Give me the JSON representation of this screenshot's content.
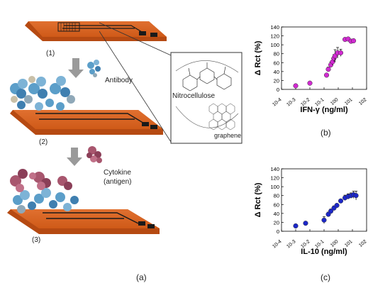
{
  "figure": {
    "panel_a_label": "(a)",
    "panel_b_label": "(b)",
    "panel_c_label": "(c)",
    "step_1_label": "(1)",
    "step_2_label": "(2)",
    "step_3_label": "(3)",
    "antibody_label": "Antibody",
    "cytokine_label_line1": "Cytokine",
    "cytokine_label_line2": "(antigen)",
    "inset_nitrocellulose_label": "Nitrocellulose",
    "inset_graphene_label": "graphene"
  },
  "colors": {
    "electrode_orange": "#d9601f",
    "trace_dark": "#1a1a1a",
    "antibody_blue": "#5b9ec9",
    "cytokine_red": "#a8566e",
    "ifn_series": "#d12ad1",
    "il10_series": "#1c27c8",
    "arrow_gray": "#9a9a9a"
  },
  "chart_data": [
    {
      "type": "scatter",
      "panel": "(b)",
      "xlabel": "IFN-γ (ng/ml)",
      "ylabel": "Δ Rct (%)",
      "xscale": "log",
      "xlim": [
        0.0001,
        100
      ],
      "ylim": [
        0,
        140
      ],
      "x_ticks": [
        "10-4",
        "10-3",
        "10-2",
        "10-1",
        "100",
        "101",
        "102"
      ],
      "y_ticks": [
        "0",
        "20",
        "40",
        "60",
        "80",
        "100",
        "120",
        "140"
      ],
      "grid": false,
      "series": [
        {
          "x": [
            0.001,
            0.01,
            0.15,
            0.2,
            0.3,
            0.4,
            0.5,
            0.6,
            0.9,
            1.5,
            3,
            5,
            8,
            12
          ],
          "y": [
            8,
            14,
            32,
            45,
            55,
            62,
            70,
            75,
            82,
            82,
            112,
            113,
            108,
            109
          ],
          "error": [
            0,
            0,
            3,
            5,
            6,
            7,
            8,
            14,
            12,
            8,
            3,
            3,
            3,
            3
          ]
        }
      ]
    },
    {
      "type": "scatter",
      "panel": "(c)",
      "xlabel": "IL-10 (ng/ml)",
      "ylabel": "Δ Rct (%)",
      "xscale": "log",
      "xlim": [
        0.0001,
        100
      ],
      "ylim": [
        0,
        140
      ],
      "x_ticks": [
        "10-4",
        "10-3",
        "10-2",
        "10-1",
        "100",
        "101",
        "102"
      ],
      "y_ticks": [
        "0",
        "20",
        "40",
        "60",
        "80",
        "100",
        "120",
        "140"
      ],
      "grid": false,
      "series": [
        {
          "x": [
            0.001,
            0.005,
            0.1,
            0.2,
            0.3,
            0.5,
            0.8,
            1.5,
            3,
            5,
            8,
            12,
            18
          ],
          "y": [
            12,
            18,
            25,
            38,
            45,
            52,
            58,
            68,
            75,
            78,
            80,
            82,
            80
          ],
          "error": [
            0,
            0,
            8,
            5,
            5,
            5,
            4,
            4,
            6,
            6,
            6,
            8,
            10
          ]
        }
      ]
    }
  ]
}
